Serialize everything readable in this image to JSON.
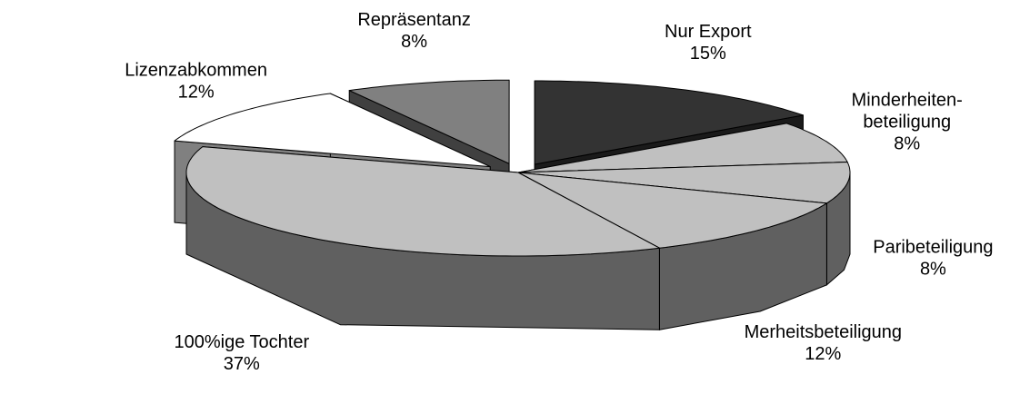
{
  "chart_data": {
    "type": "pie3d",
    "categories": [
      "Nur Export",
      "Minderheiten-\nbeteiligung",
      "Paribeteiligung",
      "Merheitsbeteiligung",
      "100%ige Tochter",
      "Lizenzabkommen",
      "Repräsentanz"
    ],
    "values": [
      15,
      8,
      8,
      12,
      37,
      12,
      8
    ],
    "value_labels": [
      "15%",
      "8%",
      "8%",
      "12%",
      "37%",
      "12%",
      "8%"
    ],
    "colors": [
      "#333333",
      "#c0c0c0",
      "#c0c0c0",
      "#c0c0c0",
      "#c0c0c0",
      "#ffffff",
      "#808080"
    ],
    "exploded": [
      true,
      false,
      false,
      false,
      false,
      true,
      true
    ]
  }
}
